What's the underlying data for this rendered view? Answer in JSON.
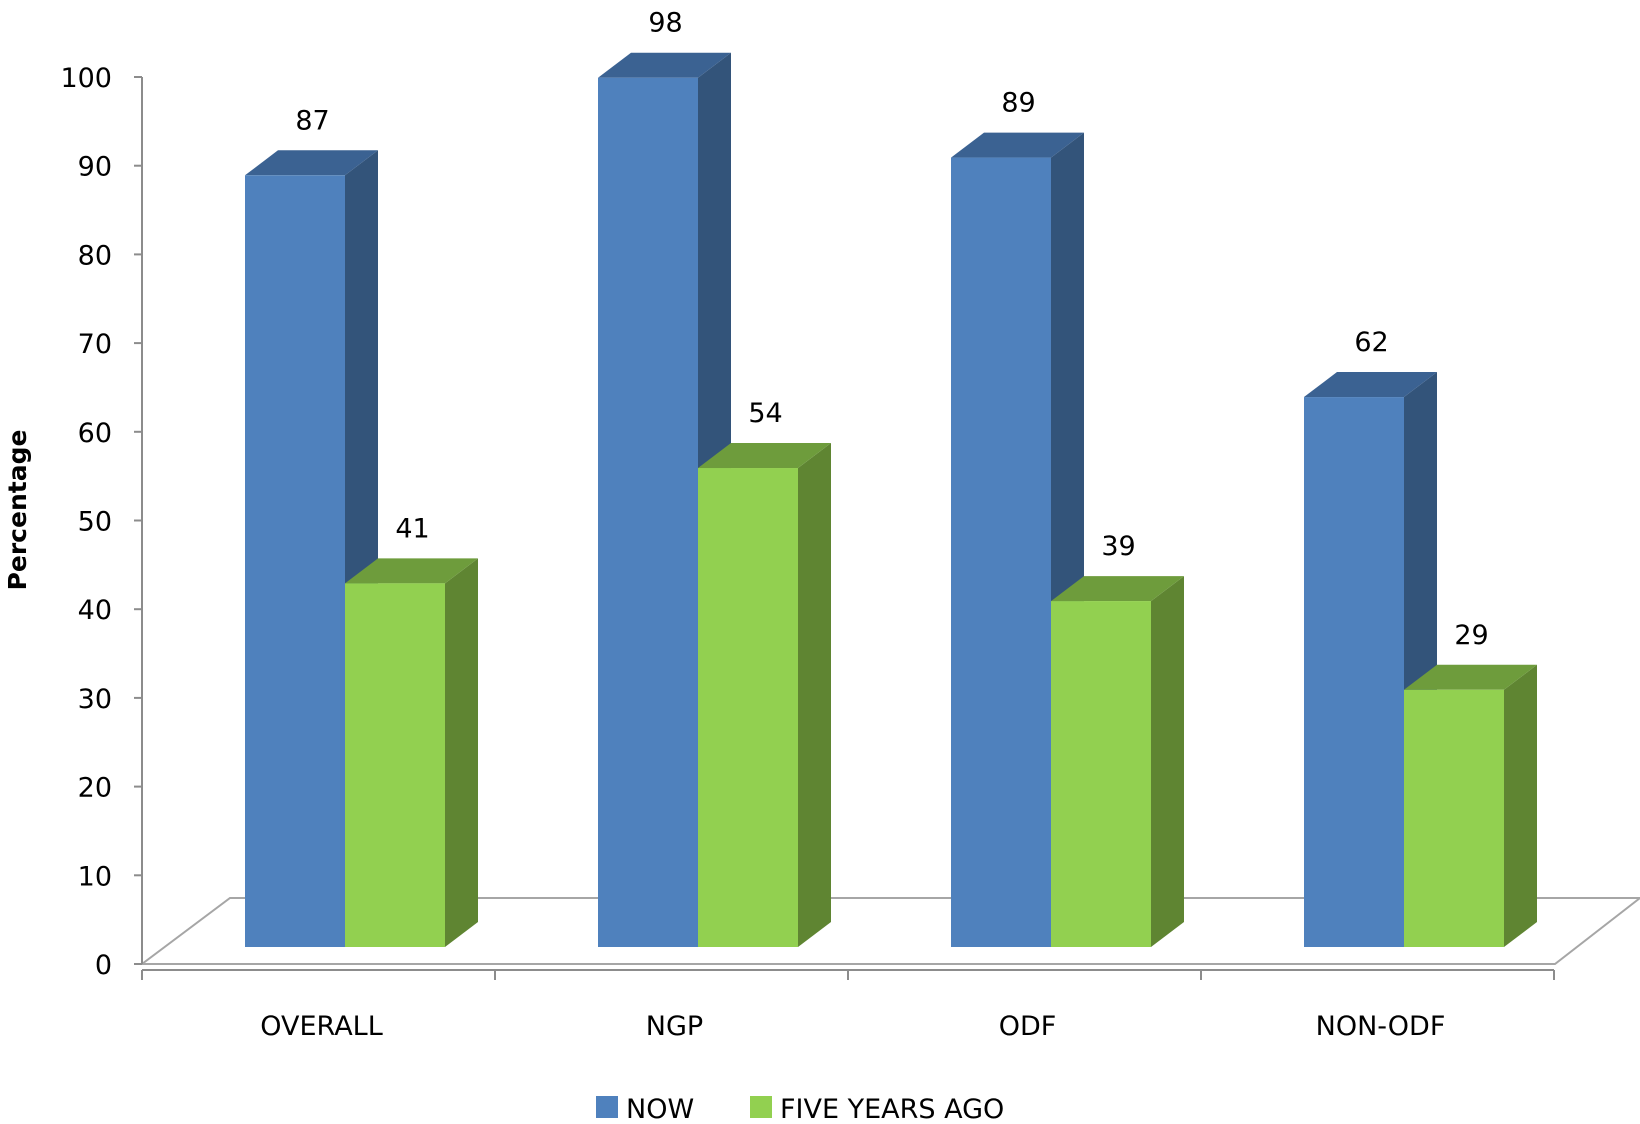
{
  "chart_data": {
    "type": "bar",
    "title": "",
    "xlabel": "",
    "ylabel": "Percentage",
    "categories": [
      "OVERALL",
      "NGP",
      "ODF",
      "NON-ODF"
    ],
    "series": [
      {
        "name": "NOW",
        "values": [
          87,
          98,
          89,
          62
        ],
        "color": "#4f81bd",
        "side_color": "#33547a",
        "top_color": "#3b6292"
      },
      {
        "name": "FIVE YEARS AGO",
        "values": [
          41,
          54,
          39,
          29
        ],
        "color": "#92d050",
        "side_color": "#5f8532",
        "top_color": "#6e9c3c"
      }
    ],
    "ylim": [
      0,
      100
    ],
    "yticks": [
      0,
      10,
      20,
      30,
      40,
      50,
      60,
      70,
      80,
      90,
      100
    ],
    "grid": false,
    "legend_position": "bottom",
    "style": "3d-clustered-column"
  }
}
